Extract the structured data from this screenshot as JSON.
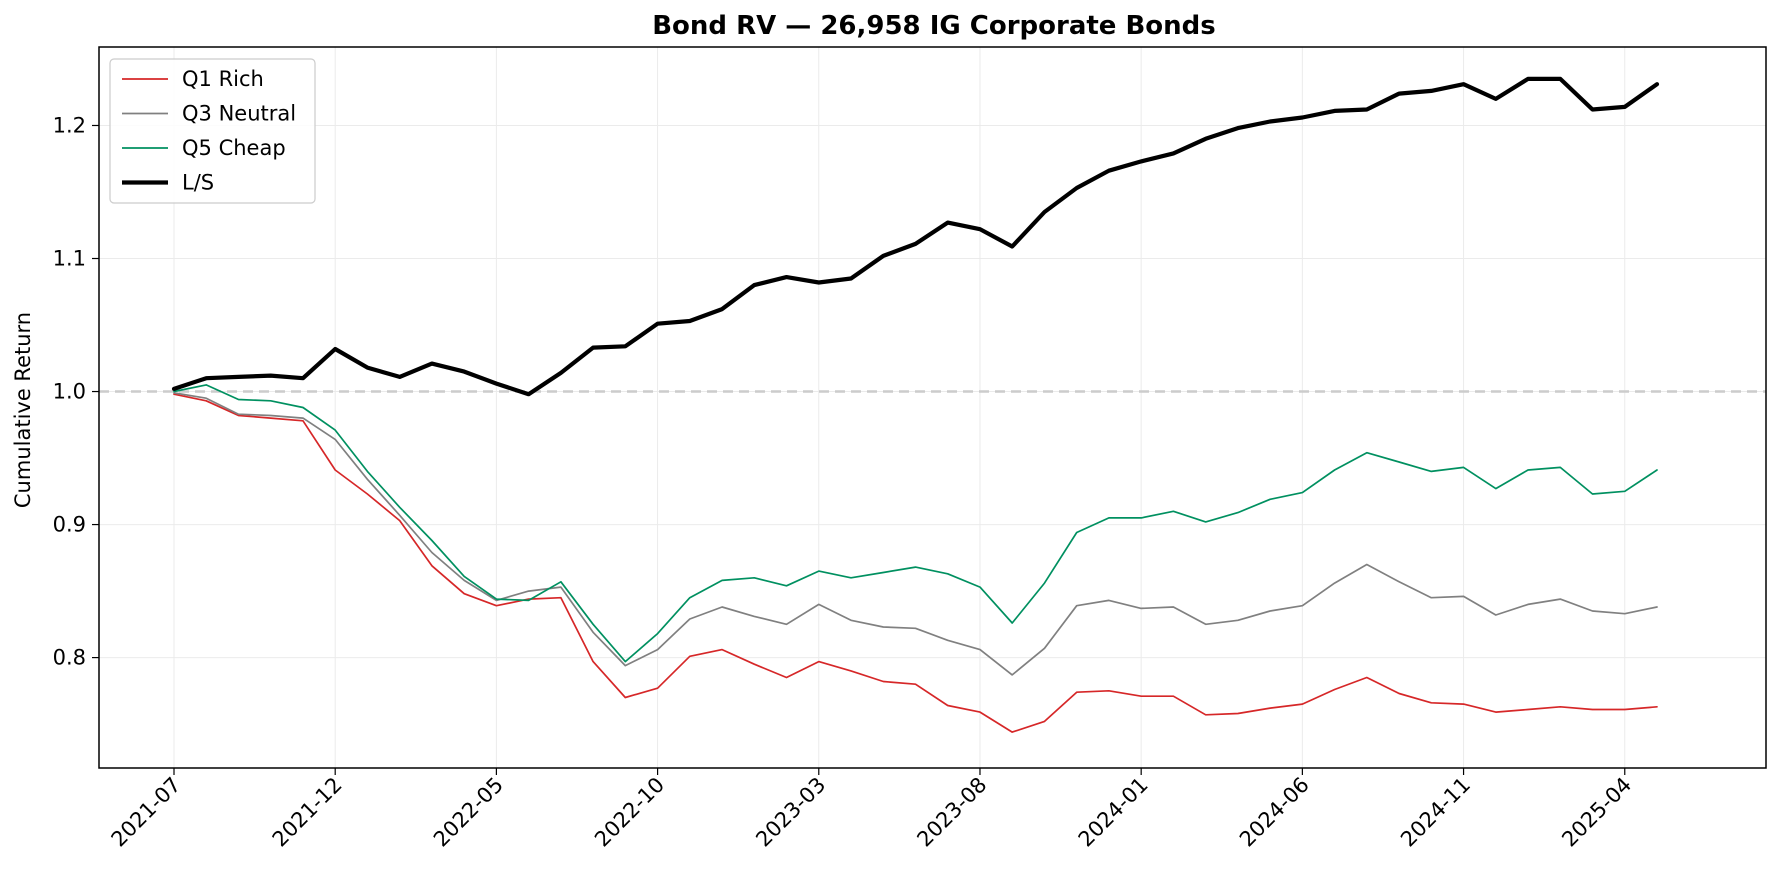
{
  "chart_data": {
    "type": "line",
    "title": "Bond RV — 26,958 IG Corporate Bonds",
    "xlabel": "",
    "ylabel": "Cumulative Return",
    "ylim": [
      0.717,
      1.259
    ],
    "y_ticks": [
      0.8,
      0.9,
      1.0,
      1.1,
      1.2
    ],
    "y_tick_labels": [
      "0.8",
      "0.9",
      "1.0",
      "1.1",
      "1.2"
    ],
    "x_ticks": [
      "2021-07",
      "2021-12",
      "2022-05",
      "2022-10",
      "2023-03",
      "2023-08",
      "2024-01",
      "2024-06",
      "2024-11",
      "2025-04"
    ],
    "x": [
      "2021-07",
      "2021-08",
      "2021-09",
      "2021-10",
      "2021-11",
      "2021-12",
      "2022-01",
      "2022-02",
      "2022-03",
      "2022-04",
      "2022-05",
      "2022-06",
      "2022-07",
      "2022-08",
      "2022-09",
      "2022-10",
      "2022-11",
      "2022-12",
      "2023-01",
      "2023-02",
      "2023-03",
      "2023-04",
      "2023-05",
      "2023-06",
      "2023-07",
      "2023-08",
      "2023-09",
      "2023-10",
      "2023-11",
      "2023-12",
      "2024-01",
      "2024-02",
      "2024-03",
      "2024-04",
      "2024-05",
      "2024-06",
      "2024-07",
      "2024-08",
      "2024-09",
      "2024-10",
      "2024-11",
      "2024-12",
      "2025-01",
      "2025-02",
      "2025-03",
      "2025-04",
      "2025-05"
    ],
    "reference_line": {
      "y": 1.0,
      "style": "dashed",
      "color": "#cccccc"
    },
    "grid": true,
    "legend_position": "top-left",
    "series": [
      {
        "name": "Q1 Rich",
        "color": "#d62728",
        "values": [
          0.998,
          0.993,
          0.982,
          0.98,
          0.978,
          0.941,
          0.923,
          0.903,
          0.869,
          0.848,
          0.839,
          0.844,
          0.845,
          0.797,
          0.77,
          0.777,
          0.801,
          0.806,
          0.795,
          0.785,
          0.797,
          0.79,
          0.782,
          0.78,
          0.764,
          0.759,
          0.744,
          0.752,
          0.774,
          0.775,
          0.771,
          0.771,
          0.757,
          0.758,
          0.762,
          0.765,
          0.776,
          0.785,
          0.773,
          0.766,
          0.765,
          0.759,
          0.761,
          0.763,
          0.761,
          0.761,
          0.763
        ]
      },
      {
        "name": "Q3 Neutral",
        "color": "#808080",
        "values": [
          0.999,
          0.995,
          0.983,
          0.982,
          0.98,
          0.964,
          0.934,
          0.907,
          0.879,
          0.858,
          0.843,
          0.85,
          0.853,
          0.819,
          0.794,
          0.806,
          0.829,
          0.838,
          0.831,
          0.825,
          0.84,
          0.828,
          0.823,
          0.822,
          0.813,
          0.806,
          0.787,
          0.807,
          0.839,
          0.843,
          0.837,
          0.838,
          0.825,
          0.828,
          0.835,
          0.839,
          0.856,
          0.87,
          0.857,
          0.845,
          0.846,
          0.832,
          0.84,
          0.844,
          0.835,
          0.833,
          0.838
        ]
      },
      {
        "name": "Q5 Cheap",
        "color": "#009060",
        "values": [
          1.0,
          1.005,
          0.994,
          0.993,
          0.988,
          0.971,
          0.94,
          0.913,
          0.888,
          0.861,
          0.844,
          0.843,
          0.857,
          0.825,
          0.797,
          0.818,
          0.845,
          0.858,
          0.86,
          0.854,
          0.865,
          0.86,
          0.864,
          0.868,
          0.863,
          0.853,
          0.826,
          0.856,
          0.894,
          0.905,
          0.905,
          0.91,
          0.902,
          0.909,
          0.919,
          0.924,
          0.941,
          0.954,
          0.947,
          0.94,
          0.943,
          0.927,
          0.941,
          0.943,
          0.923,
          0.925,
          0.941
        ]
      },
      {
        "name": "L/S",
        "color": "#000000",
        "values": [
          1.002,
          1.01,
          1.011,
          1.012,
          1.01,
          1.032,
          1.018,
          1.011,
          1.021,
          1.015,
          1.006,
          0.998,
          1.014,
          1.033,
          1.034,
          1.051,
          1.053,
          1.062,
          1.08,
          1.086,
          1.082,
          1.085,
          1.102,
          1.111,
          1.127,
          1.122,
          1.109,
          1.135,
          1.153,
          1.166,
          1.173,
          1.179,
          1.19,
          1.198,
          1.203,
          1.206,
          1.211,
          1.212,
          1.224,
          1.226,
          1.231,
          1.22,
          1.235,
          1.235,
          1.212,
          1.214,
          1.231
        ]
      }
    ]
  }
}
